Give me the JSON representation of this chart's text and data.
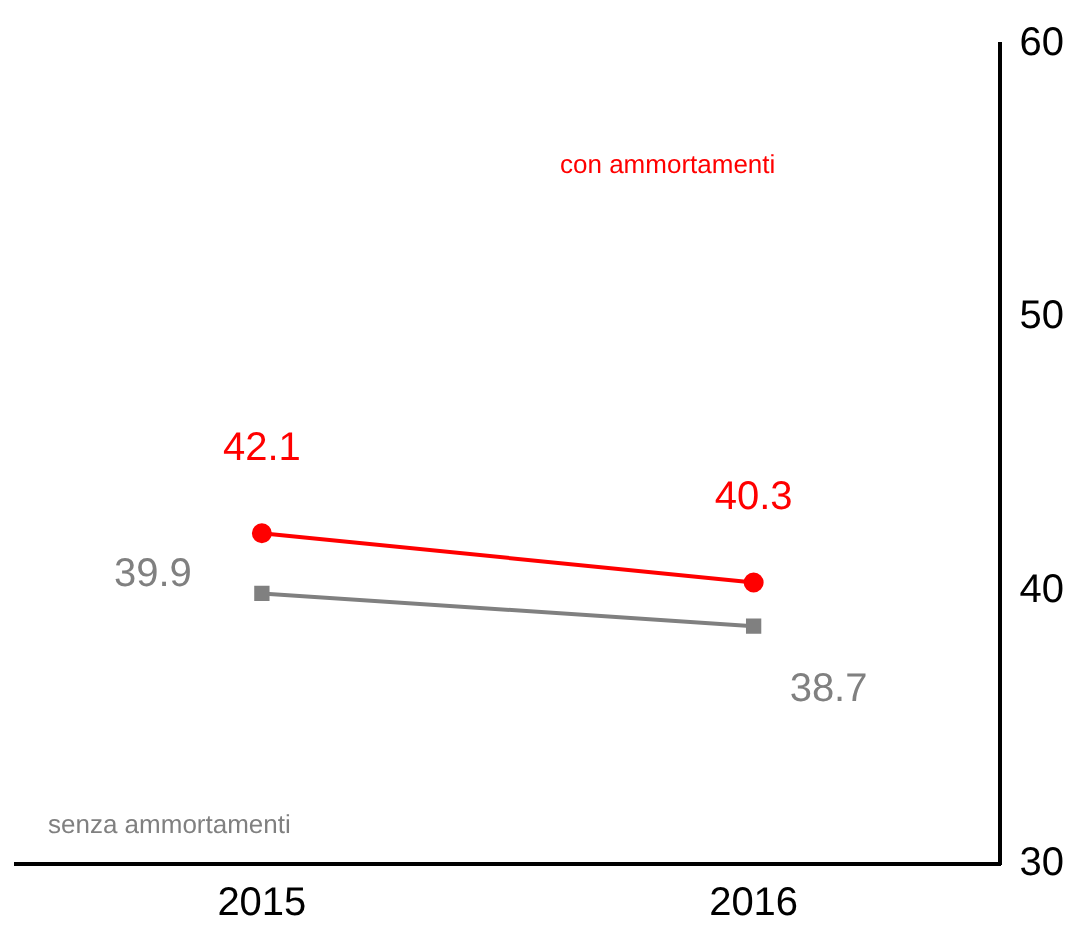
{
  "chart_data": {
    "type": "line",
    "categories": [
      "2015",
      "2016"
    ],
    "series": [
      {
        "name": "con ammortamenti",
        "color": "#ff0000",
        "values": [
          42.1,
          40.3
        ],
        "marker": "circle"
      },
      {
        "name": "senza ammortamenti",
        "color": "#808080",
        "values": [
          39.9,
          38.7
        ],
        "marker": "square"
      }
    ],
    "ylim": [
      30,
      60
    ],
    "yticks": [
      30,
      40,
      50,
      60
    ],
    "data_labels": true,
    "grid": false,
    "legend": false
  }
}
